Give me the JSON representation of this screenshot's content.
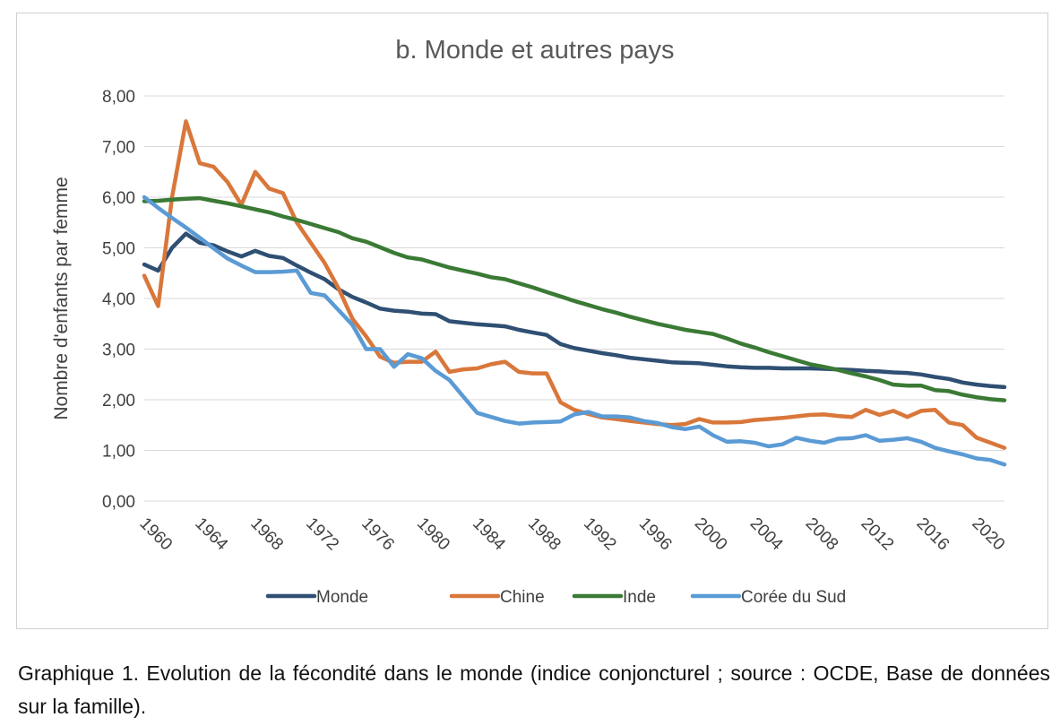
{
  "caption": "Graphique 1. Evolution de la fécondité dans le monde (indice conjoncturel ; source : OCDE, Base de données sur la famille).",
  "chart_data": {
    "type": "line",
    "title": "b. Monde et autres pays",
    "xlabel": "",
    "ylabel": "Nombre d'enfants par femme",
    "ylim": [
      0,
      8
    ],
    "xlim": [
      1960,
      2022
    ],
    "yticks": [
      "0,00",
      "1,00",
      "2,00",
      "3,00",
      "4,00",
      "5,00",
      "6,00",
      "7,00",
      "8,00"
    ],
    "xticks": [
      "1960",
      "1964",
      "1968",
      "1972",
      "1976",
      "1980",
      "1984",
      "1988",
      "1992",
      "1996",
      "2000",
      "2004",
      "2008",
      "2012",
      "2016",
      "2020"
    ],
    "grid": true,
    "legend": "bottom",
    "x": [
      1960,
      1961,
      1962,
      1963,
      1964,
      1965,
      1966,
      1967,
      1968,
      1969,
      1970,
      1971,
      1972,
      1973,
      1974,
      1975,
      1976,
      1977,
      1978,
      1979,
      1980,
      1981,
      1982,
      1983,
      1984,
      1985,
      1986,
      1987,
      1988,
      1989,
      1990,
      1991,
      1992,
      1993,
      1994,
      1995,
      1996,
      1997,
      1998,
      1999,
      2000,
      2001,
      2002,
      2003,
      2004,
      2005,
      2006,
      2007,
      2008,
      2009,
      2010,
      2011,
      2012,
      2013,
      2014,
      2015,
      2016,
      2017,
      2018,
      2019,
      2020,
      2021,
      2022
    ],
    "series": [
      {
        "name": "Monde",
        "color": "#2f4f73",
        "values": [
          4.67,
          4.55,
          5.0,
          5.28,
          5.1,
          5.05,
          4.93,
          4.83,
          4.94,
          4.84,
          4.8,
          4.65,
          4.51,
          4.38,
          4.18,
          4.03,
          3.92,
          3.8,
          3.76,
          3.74,
          3.7,
          3.69,
          3.55,
          3.52,
          3.49,
          3.47,
          3.45,
          3.38,
          3.33,
          3.28,
          3.1,
          3.02,
          2.97,
          2.92,
          2.88,
          2.83,
          2.8,
          2.77,
          2.74,
          2.73,
          2.72,
          2.69,
          2.66,
          2.64,
          2.63,
          2.63,
          2.62,
          2.62,
          2.62,
          2.61,
          2.6,
          2.59,
          2.57,
          2.56,
          2.54,
          2.53,
          2.5,
          2.45,
          2.41,
          2.34,
          2.3,
          2.27,
          2.25
        ]
      },
      {
        "name": "Chine",
        "color": "#d9773b",
        "values": [
          4.45,
          3.85,
          6.0,
          7.5,
          6.67,
          6.6,
          6.3,
          5.85,
          6.5,
          6.17,
          6.08,
          5.5,
          5.1,
          4.7,
          4.2,
          3.6,
          3.25,
          2.85,
          2.73,
          2.75,
          2.75,
          2.95,
          2.55,
          2.6,
          2.62,
          2.7,
          2.75,
          2.55,
          2.52,
          2.52,
          1.95,
          1.8,
          1.72,
          1.65,
          1.62,
          1.58,
          1.55,
          1.52,
          1.5,
          1.52,
          1.62,
          1.55,
          1.55,
          1.56,
          1.6,
          1.62,
          1.64,
          1.67,
          1.7,
          1.71,
          1.68,
          1.66,
          1.8,
          1.7,
          1.78,
          1.66,
          1.78,
          1.8,
          1.55,
          1.5,
          1.25,
          1.15,
          1.05
        ]
      },
      {
        "name": "Inde",
        "color": "#3b7a35",
        "values": [
          5.92,
          5.93,
          5.95,
          5.97,
          5.98,
          5.93,
          5.88,
          5.82,
          5.76,
          5.7,
          5.62,
          5.55,
          5.47,
          5.39,
          5.31,
          5.19,
          5.12,
          5.01,
          4.9,
          4.81,
          4.77,
          4.69,
          4.61,
          4.55,
          4.49,
          4.42,
          4.38,
          4.3,
          4.22,
          4.13,
          4.04,
          3.95,
          3.87,
          3.79,
          3.72,
          3.64,
          3.57,
          3.5,
          3.44,
          3.38,
          3.34,
          3.3,
          3.21,
          3.11,
          3.03,
          2.94,
          2.86,
          2.78,
          2.7,
          2.65,
          2.59,
          2.52,
          2.46,
          2.39,
          2.3,
          2.28,
          2.28,
          2.19,
          2.17,
          2.1,
          2.05,
          2.01,
          1.99
        ]
      },
      {
        "name": "Corée du Sud",
        "color": "#5b9bd5",
        "values": [
          6.0,
          5.79,
          5.59,
          5.4,
          5.2,
          4.99,
          4.79,
          4.65,
          4.52,
          4.52,
          4.53,
          4.55,
          4.11,
          4.06,
          3.77,
          3.48,
          3.0,
          3.0,
          2.65,
          2.9,
          2.82,
          2.57,
          2.39,
          2.06,
          1.74,
          1.66,
          1.58,
          1.53,
          1.55,
          1.56,
          1.57,
          1.71,
          1.76,
          1.67,
          1.67,
          1.65,
          1.58,
          1.54,
          1.46,
          1.42,
          1.47,
          1.3,
          1.17,
          1.18,
          1.15,
          1.08,
          1.12,
          1.25,
          1.19,
          1.15,
          1.23,
          1.24,
          1.3,
          1.19,
          1.21,
          1.24,
          1.17,
          1.05,
          0.98,
          0.92,
          0.84,
          0.81,
          0.72
        ]
      }
    ]
  }
}
